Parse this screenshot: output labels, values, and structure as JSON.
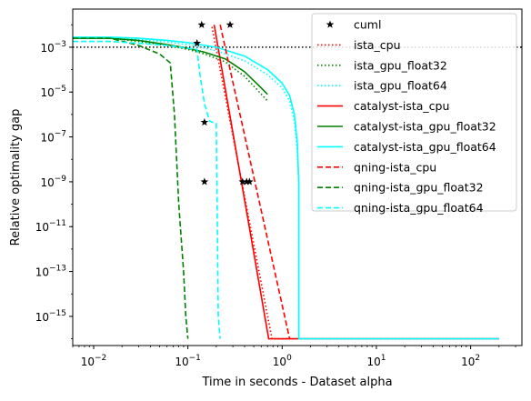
{
  "chart_data": {
    "type": "line",
    "xlabel": "Time in seconds - Dataset alpha",
    "ylabel": "Relative optimality gap",
    "xscale": "log",
    "yscale": "log",
    "xlim": [
      0.006,
      350
    ],
    "ylim": [
      5e-17,
      0.05
    ],
    "x_ticks": [
      {
        "value": 0.01,
        "base": "10",
        "exp": "−2"
      },
      {
        "value": 0.1,
        "base": "10",
        "exp": "−1"
      },
      {
        "value": 1,
        "base": "10",
        "exp": "0"
      },
      {
        "value": 10,
        "base": "10",
        "exp": "1"
      },
      {
        "value": 100,
        "base": "10",
        "exp": "2"
      }
    ],
    "y_ticks": [
      {
        "value": 0.001,
        "base": "10",
        "exp": "−3"
      },
      {
        "value": 1e-05,
        "base": "10",
        "exp": "−5"
      },
      {
        "value": 1e-07,
        "base": "10",
        "exp": "−7"
      },
      {
        "value": 1e-09,
        "base": "10",
        "exp": "−9"
      },
      {
        "value": 1e-11,
        "base": "10",
        "exp": "−11"
      },
      {
        "value": 1e-13,
        "base": "10",
        "exp": "−13"
      },
      {
        "value": 1e-15,
        "base": "10",
        "exp": "−15"
      }
    ],
    "reference_line": {
      "y": 0.001,
      "style": "dotted",
      "color": "#000000"
    },
    "legend_position": "top-right",
    "series": [
      {
        "name": "cuml",
        "kind": "marker",
        "color": "#000000",
        "x": [
          0.14,
          0.28,
          0.125,
          0.15,
          0.15,
          0.38,
          0.42,
          0.45
        ],
        "y": [
          0.01,
          0.01,
          0.0015,
          4.5e-07,
          1e-09,
          1e-09,
          1e-09,
          1e-09
        ]
      },
      {
        "name": "ista_cpu",
        "style": "dotted",
        "color": "#ff0000",
        "x": [
          0.18,
          0.78,
          200
        ],
        "y": [
          0.008,
          1e-16,
          1e-16
        ]
      },
      {
        "name": "ista_gpu_float32",
        "style": "dotted",
        "color": "#008000",
        "x": [
          0.006,
          0.015,
          0.03,
          0.06,
          0.1,
          0.15,
          0.25,
          0.4,
          0.55,
          0.7
        ],
        "y": [
          0.0025,
          0.0025,
          0.0018,
          0.0012,
          0.0008,
          0.0005,
          0.00022,
          5e-05,
          1.2e-05,
          4e-06
        ]
      },
      {
        "name": "ista_gpu_float64",
        "style": "dotted",
        "color": "#00ffff",
        "x": [
          0.006,
          0.015,
          0.03,
          0.06,
          0.1,
          0.2,
          0.4,
          0.7,
          1.0,
          1.2,
          1.35,
          1.45,
          1.5,
          1.5,
          200
        ],
        "y": [
          0.0025,
          0.0025,
          0.0022,
          0.0017,
          0.0013,
          0.0007,
          0.00025,
          6e-05,
          1.5e-05,
          4e-06,
          5e-07,
          2e-08,
          1e-09,
          1e-16,
          1e-16
        ]
      },
      {
        "name": "catalyst-ista_cpu",
        "style": "solid",
        "color": "#ff0000",
        "x": [
          0.19,
          0.72,
          200
        ],
        "y": [
          0.01,
          1e-16,
          1e-16
        ]
      },
      {
        "name": "catalyst-ista_gpu_float32",
        "style": "solid",
        "color": "#008000",
        "x": [
          0.006,
          0.015,
          0.03,
          0.06,
          0.1,
          0.15,
          0.25,
          0.4,
          0.55,
          0.7
        ],
        "y": [
          0.0025,
          0.0025,
          0.002,
          0.0013,
          0.0009,
          0.0006,
          0.0003,
          8e-05,
          2.2e-05,
          8e-06
        ]
      },
      {
        "name": "catalyst-ista_gpu_float64",
        "style": "solid",
        "color": "#00ffff",
        "x": [
          0.006,
          0.015,
          0.03,
          0.06,
          0.1,
          0.2,
          0.4,
          0.7,
          1.0,
          1.2,
          1.35,
          1.45,
          1.5,
          1.5,
          200
        ],
        "y": [
          0.0028,
          0.0028,
          0.0025,
          0.002,
          0.0016,
          0.001,
          0.0004,
          0.0001,
          2.5e-05,
          7e-06,
          1e-06,
          5e-08,
          1e-09,
          1e-16,
          1e-16
        ]
      },
      {
        "name": "qning-ista_cpu",
        "style": "dashed",
        "color": "#ff0000",
        "x": [
          0.22,
          1.2
        ],
        "y": [
          0.01,
          1e-16
        ]
      },
      {
        "name": "qning-ista_gpu_float32",
        "style": "dashed",
        "color": "#008000",
        "x": [
          0.006,
          0.015,
          0.03,
          0.05,
          0.065,
          0.072,
          0.08,
          0.09,
          0.095,
          0.1
        ],
        "y": [
          0.0025,
          0.0025,
          0.0012,
          0.0005,
          0.0002,
          1e-06,
          1e-10,
          1e-13,
          1e-15,
          1e-16
        ]
      },
      {
        "name": "qning-ista_gpu_float64",
        "style": "dashed",
        "color": "#00ffff",
        "x": [
          0.006,
          0.015,
          0.03,
          0.06,
          0.1,
          0.125,
          0.135,
          0.15,
          0.17,
          0.2,
          0.21,
          0.22
        ],
        "y": [
          0.0018,
          0.0018,
          0.0015,
          0.0012,
          0.0009,
          0.0008,
          5e-05,
          3e-06,
          5e-07,
          4e-07,
          1e-15,
          1e-16
        ]
      }
    ]
  }
}
